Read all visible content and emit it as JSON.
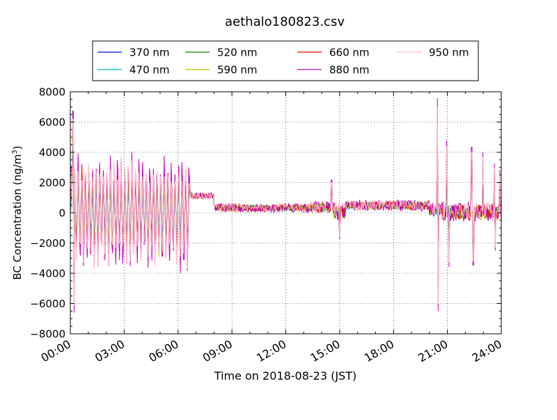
{
  "chart_data": {
    "type": "line",
    "title": "aethalo180823.csv",
    "xlabel": "Time on 2018-08-23 (JST)",
    "ylabel": "BC Concentration (ng/m",
    "ylabel_sup": "3",
    "ylabel_end": ")",
    "xlim": [
      "00:00",
      "24:00"
    ],
    "ylim": [
      -8000,
      8000
    ],
    "grid": true,
    "legend_position": "top",
    "x_ticks": [
      "00:00",
      "03:00",
      "06:00",
      "09:00",
      "12:00",
      "15:00",
      "18:00",
      "21:00",
      "24:00"
    ],
    "y_ticks": [
      "−8000",
      "−6000",
      "−4000",
      "−2000",
      "0",
      "2000",
      "4000",
      "6000",
      "8000"
    ],
    "series": [
      {
        "name": "370 nm",
        "color": "#0000ff"
      },
      {
        "name": "470 nm",
        "color": "#00bfbf"
      },
      {
        "name": "520 nm",
        "color": "#008000"
      },
      {
        "name": "590 nm",
        "color": "#bfbf00"
      },
      {
        "name": "660 nm",
        "color": "#ff0000"
      },
      {
        "name": "880 nm",
        "color": "#bf00bf"
      },
      {
        "name": "950 nm",
        "color": "#ffb6c1"
      }
    ],
    "segments": [
      {
        "start": "00:00",
        "end": "06:40",
        "baseline": 0,
        "amplitude": 3800
      },
      {
        "start": "06:40",
        "end": "08:00",
        "baseline": 1100,
        "amplitude": 300
      },
      {
        "start": "08:00",
        "end": "13:20",
        "baseline": 300,
        "amplitude": 400
      },
      {
        "start": "13:20",
        "end": "14:40",
        "baseline": 300,
        "amplitude": 600
      },
      {
        "start": "14:40",
        "end": "15:20",
        "baseline": 0,
        "amplitude": 900
      },
      {
        "start": "15:20",
        "end": "20:00",
        "baseline": 450,
        "amplitude": 500
      },
      {
        "start": "20:00",
        "end": "20:40",
        "baseline": 150,
        "amplitude": 600
      },
      {
        "start": "20:40",
        "end": "24:00",
        "baseline": 0,
        "amplitude": 900
      }
    ],
    "spikes": [
      {
        "time": "00:09",
        "value": 6200
      },
      {
        "time": "00:12",
        "value": -6100
      },
      {
        "time": "14:33",
        "value": 2000
      },
      {
        "time": "15:00",
        "value": -1600
      },
      {
        "time": "20:28",
        "value": 7000
      },
      {
        "time": "20:30",
        "value": -6000
      },
      {
        "time": "20:58",
        "value": 4400
      },
      {
        "time": "21:05",
        "value": -3300
      },
      {
        "time": "22:21",
        "value": 4000
      },
      {
        "time": "22:26",
        "value": -3200
      },
      {
        "time": "22:58",
        "value": 3700
      },
      {
        "time": "23:36",
        "value": 3000
      },
      {
        "time": "23:40",
        "value": -2300
      },
      {
        "time": "23:55",
        "value": 2600
      }
    ]
  }
}
